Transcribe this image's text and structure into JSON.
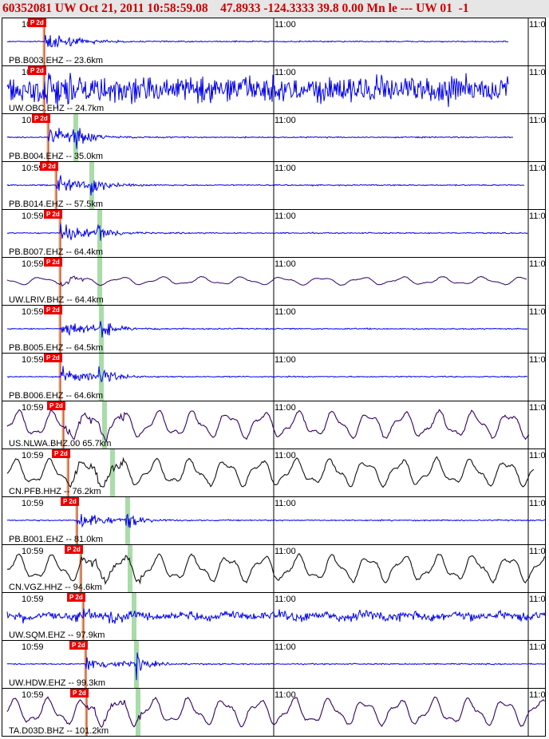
{
  "header": {
    "event_id": "60352081",
    "network": "UW",
    "datetime": "Oct 21, 2011 10:58:59.08",
    "latitude": "47.8933",
    "longitude": "-124.3333",
    "depth": "39.8",
    "magnitude": "0.00",
    "mag_type": "Mn",
    "extra": "le ---",
    "source": "UW 01",
    "version": "-1"
  },
  "time_labels": {
    "start": "10:59",
    "mid": "11:00",
    "end": "11:0"
  },
  "pick_label": "P 2d",
  "colors": {
    "trace_blue": "#0000ee",
    "trace_purple": "#330066",
    "trace_black": "#111111",
    "pick_red": "#ee0000",
    "pick_line": "#cc2200",
    "s_green": "#a8dca8",
    "header_red": "#cc0000"
  },
  "traces": [
    {
      "label": "PB.B003.EHZ -- 23.6km",
      "type": "event",
      "color": "blue"
    },
    {
      "label": "UW.OBC.EHZ -- 24.7km",
      "type": "saturated",
      "color": "blue"
    },
    {
      "label": "PB.B004.EHZ -- 35.0km",
      "type": "event",
      "color": "blue"
    },
    {
      "label": "PB.B014.EHZ -- 57.5km",
      "type": "event",
      "color": "blue"
    },
    {
      "label": "PB.B007.EHZ -- 64.4km",
      "type": "event",
      "color": "blue"
    },
    {
      "label": "UW.LRIV.BHZ -- 64.4km",
      "type": "lowfreq",
      "color": "purple"
    },
    {
      "label": "PB.B005.EHZ -- 64.5km",
      "type": "event",
      "color": "blue"
    },
    {
      "label": "PB.B006.EHZ -- 64.6km",
      "type": "event",
      "color": "blue"
    },
    {
      "label": "US.NLWA.BHZ.00 65.7km",
      "type": "lowfreq-big",
      "color": "purple"
    },
    {
      "label": "CN.PFB.HHZ -- 76.2km",
      "type": "lowfreq-big",
      "color": "black"
    },
    {
      "label": "PB.B001.EHZ -- 81.0km",
      "type": "event",
      "color": "blue"
    },
    {
      "label": "CN.VGZ.HHZ -- 94.6km",
      "type": "lowfreq-big",
      "color": "black"
    },
    {
      "label": "UW.SQM.EHZ -- 97.9km",
      "type": "noisy",
      "color": "blue"
    },
    {
      "label": "UW.HDW.EHZ -- 99.3km",
      "type": "event",
      "color": "blue"
    },
    {
      "label": "TA.D03D.BHZ -- 101.2km",
      "type": "lowfreq-big",
      "color": "purple"
    }
  ]
}
